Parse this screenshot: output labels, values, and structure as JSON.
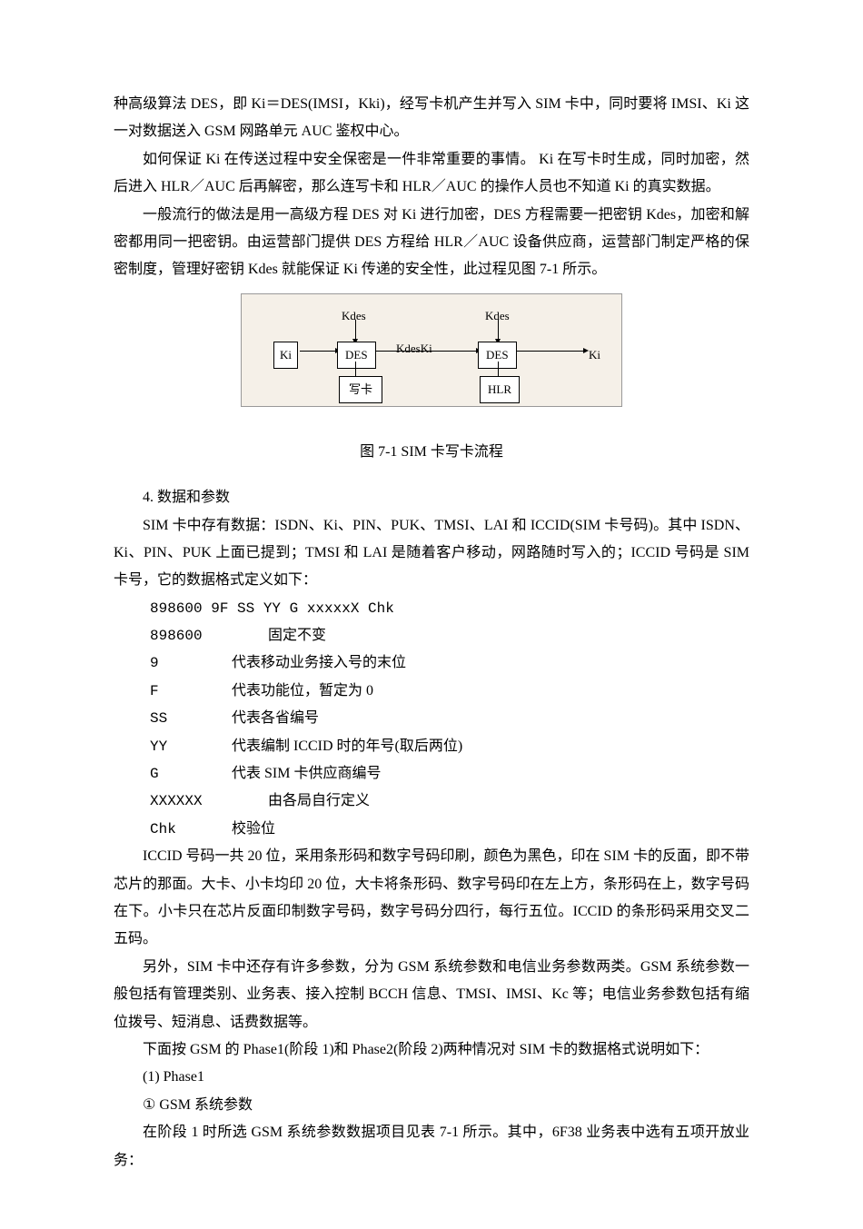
{
  "paragraphs": {
    "p1": "种高级算法 DES，即 Ki＝DES(IMSI，Kki)，经写卡机产生并写入 SIM 卡中，同时要将 IMSI、Ki 这一对数据送入 GSM 网路单元 AUC 鉴权中心。",
    "p2": "如何保证 Ki 在传送过程中安全保密是一件非常重要的事情。 Ki 在写卡时生成，同时加密，然后进入 HLR／AUC 后再解密，那么连写卡和 HLR／AUC 的操作人员也不知道 Ki 的真实数据。",
    "p3": "一般流行的做法是用一高级方程 DES 对 Ki 进行加密，DES 方程需要一把密钥 Kdes，加密和解密都用同一把密钥。由运营部门提供 DES 方程给 HLR／AUC 设备供应商，运营部门制定严格的保密制度，管理好密钥 Kdes 就能保证 Ki 传递的安全性，此过程见图 7-1 所示。"
  },
  "diagram": {
    "ki_label": "Ki",
    "kdes1": "Kdes",
    "kdes2": "Kdes",
    "des1": "DES",
    "des2": "DES",
    "kdeski": "KdesKi",
    "ki_out": "Ki",
    "writecard": "写卡",
    "hlr": "HLR"
  },
  "caption": "图 7-1  SIM 卡写卡流程",
  "section4": {
    "title": "4. 数据和参数",
    "p1": "SIM 卡中存有数据：ISDN、Ki、PIN、PUK、TMSI、LAI 和 ICCID(SIM 卡号码)。其中 ISDN、Ki、PIN、PUK 上面已提到；TMSI 和 LAI 是随着客户移动，网路随时写入的；ICCID 号码是 SIM 卡号，它的数据格式定义如下：",
    "format_line": "898600  9F SS YY G xxxxxX Chk",
    "fields": [
      {
        "code": "898600",
        "desc": "固定不变",
        "wide": true
      },
      {
        "code": "9",
        "desc": "代表移动业务接入号的末位",
        "wide": false
      },
      {
        "code": "F",
        "desc": "代表功能位，暂定为 0",
        "wide": false
      },
      {
        "code": "SS",
        "desc": "代表各省编号",
        "wide": false
      },
      {
        "code": "YY",
        "desc": "代表编制 ICCID 时的年号(取后两位)",
        "wide": false
      },
      {
        "code": "G",
        "desc": "代表 SIM 卡供应商编号",
        "wide": false
      },
      {
        "code": "XXXXXX",
        "desc": "由各局自行定义",
        "wide": true
      },
      {
        "code": "Chk",
        "desc": "校验位",
        "wide": false
      }
    ],
    "p2": "ICCID 号码一共 20 位，采用条形码和数字号码印刷，颜色为黑色，印在 SIM 卡的反面，即不带芯片的那面。大卡、小卡均印 20 位，大卡将条形码、数字号码印在左上方，条形码在上，数字号码在下。小卡只在芯片反面印制数字号码，数字号码分四行，每行五位。ICCID 的条形码采用交叉二五码。",
    "p3": "另外，SIM 卡中还存有许多参数，分为 GSM 系统参数和电信业务参数两类。GSM 系统参数一般包括有管理类别、业务表、接入控制 BCCH 信息、TMSI、IMSI、Kc 等；电信业务参数包括有缩位拨号、短消息、话费数据等。",
    "p4": "下面按 GSM 的 Phase1(阶段 1)和 Phase2(阶段 2)两种情况对 SIM 卡的数据格式说明如下：",
    "sub1": "(1) Phase1",
    "sub2": "① GSM 系统参数",
    "p5": "在阶段 1 时所选 GSM 系统参数数据项目见表 7-1 所示。其中，6F38 业务表中选有五项开放业务："
  }
}
